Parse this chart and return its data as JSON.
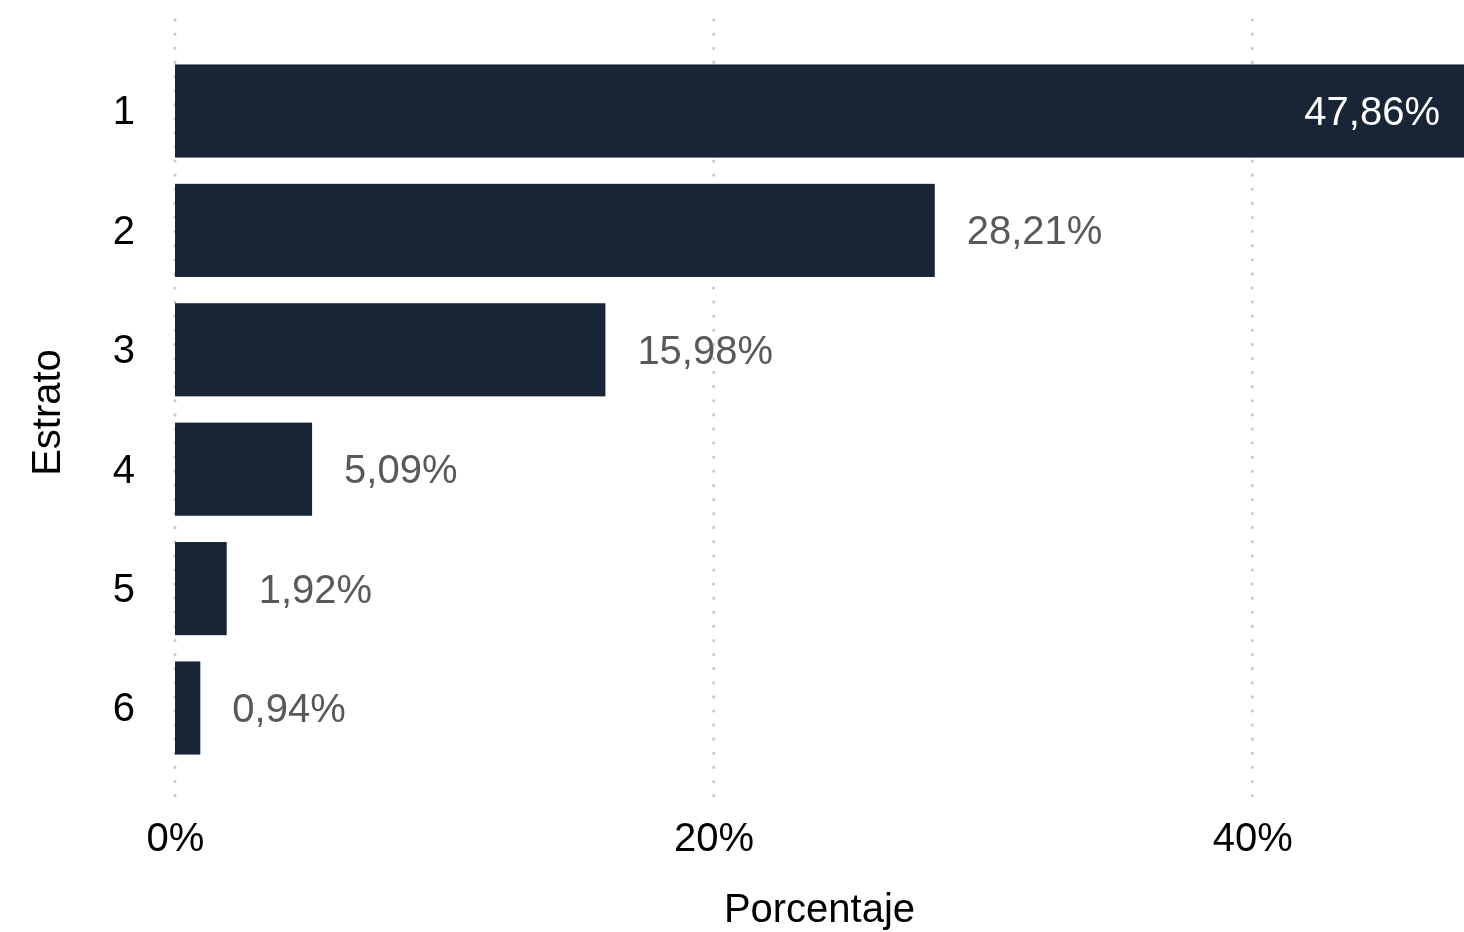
{
  "chart_data": {
    "type": "bar",
    "orientation": "horizontal",
    "xlabel": "Porcentaje",
    "ylabel": "Estrato",
    "categories": [
      "1",
      "2",
      "3",
      "4",
      "5",
      "6"
    ],
    "values": [
      47.86,
      28.21,
      15.98,
      5.09,
      1.92,
      0.94
    ],
    "value_labels": [
      "47,86%",
      "28,21%",
      "15,98%",
      "5,09%",
      "1,92%",
      "0,94%"
    ],
    "color": "#172536",
    "xlim": [
      0,
      47.86
    ],
    "xticks": [
      {
        "value": 0,
        "label": "0%"
      },
      {
        "value": 20,
        "label": "20%"
      },
      {
        "value": 40,
        "label": "40%"
      }
    ],
    "grid": "x"
  }
}
